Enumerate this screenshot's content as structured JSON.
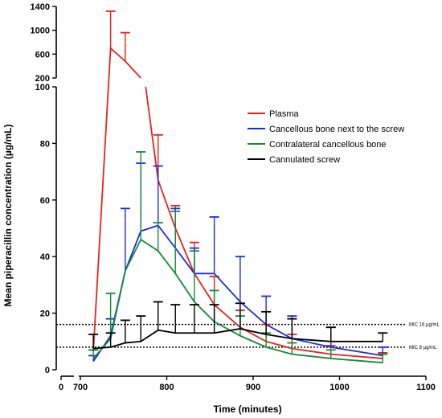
{
  "chart_data": {
    "type": "line",
    "xlabel": "Time (minutes)",
    "ylabel": "Mean piperacillin concentration (µg/mL)",
    "xlim": [
      0,
      1100
    ],
    "x_ticks": [
      0,
      700,
      800,
      900,
      1000,
      1100
    ],
    "y_ticks_lower": [
      0,
      20,
      40,
      60,
      80,
      100
    ],
    "y_ticks_upper": [
      200,
      600,
      1000,
      1400
    ],
    "y_axis_break": {
      "lower_range": [
        0,
        100
      ],
      "upper_range": [
        100,
        1400
      ]
    },
    "legend_position": "center-right",
    "series": [
      {
        "name": "Plasma",
        "color": "#e8231b",
        "x": [
          715,
          735,
          752,
          770,
          790,
          810,
          832,
          855,
          885,
          915,
          945,
          990,
          1050
        ],
        "y": [
          6.5,
          700,
          480,
          200,
          67,
          50,
          34,
          23,
          15,
          10,
          7.5,
          5.5,
          4
        ],
        "err": [
          0.5,
          620,
          480,
          0,
          16,
          8,
          11,
          10,
          6,
          6,
          5,
          3,
          2
        ]
      },
      {
        "name": "Cancellous bone next to the screw",
        "color": "#1a2ddb",
        "x": [
          715,
          735,
          752,
          770,
          790,
          810,
          832,
          855,
          885,
          915,
          945,
          990,
          1050
        ],
        "y": [
          3,
          12,
          35,
          49,
          51,
          43,
          34,
          34,
          24,
          16,
          11,
          8,
          5
        ],
        "err": [
          2,
          6,
          22,
          24,
          21,
          14,
          9,
          20,
          16,
          10,
          8,
          7,
          3
        ]
      },
      {
        "name": "Contralateral cancellous bone",
        "color": "#178a3c",
        "x": [
          715,
          735,
          752,
          770,
          790,
          810,
          832,
          855,
          885,
          915,
          945,
          990,
          1050
        ],
        "y": [
          4,
          11,
          35,
          46,
          42,
          34,
          24,
          17,
          12,
          8,
          5.5,
          4,
          2.5
        ],
        "err": [
          3,
          16,
          0,
          31,
          10,
          22,
          18,
          11,
          7,
          5,
          4,
          3,
          3
        ]
      },
      {
        "name": "Cannulated screw",
        "color": "#000000",
        "x": [
          715,
          735,
          752,
          770,
          790,
          810,
          832,
          855,
          885,
          915,
          945,
          990,
          1050
        ],
        "y": [
          7.5,
          8,
          9.5,
          10,
          14,
          13,
          13,
          13,
          14.5,
          12.5,
          11,
          10,
          10
        ],
        "err": [
          5,
          5,
          8,
          9,
          10,
          10,
          10,
          10,
          9,
          8,
          7,
          5,
          3
        ]
      }
    ],
    "reference_lines": [
      {
        "label": "MIC 16 µg/mL",
        "y": 16
      },
      {
        "label": "MIC 8 µg/mL",
        "y": 8
      }
    ]
  }
}
